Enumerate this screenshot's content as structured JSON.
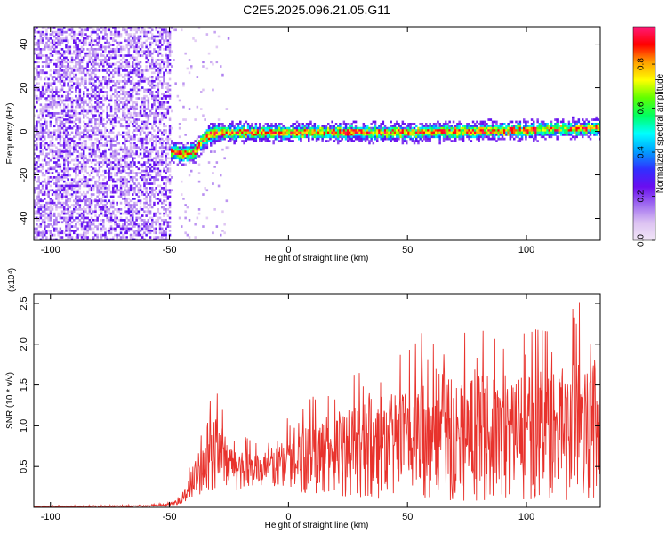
{
  "title": "C2E5.2025.096.21.05.G11",
  "chart_data": [
    {
      "type": "heatmap",
      "xlabel": "Height of straight line (km)",
      "ylabel": "Frequency (Hz)",
      "xlim": [
        -107,
        131
      ],
      "ylim": [
        -50,
        48
      ],
      "xticks": [
        -100,
        -50,
        0,
        50,
        100
      ],
      "yticks": [
        -40,
        -20,
        0,
        20,
        40
      ],
      "colorbar": {
        "label": "Normalized spectral amplitude",
        "range": [
          0,
          0.97
        ],
        "ticks": [
          "0.0",
          "0.2",
          "0.4",
          "0.6",
          "0.8"
        ],
        "tick_values": [
          0,
          0.2,
          0.4,
          0.6,
          0.8
        ],
        "colormap": [
          "#f2e6f7",
          "#dcc2f2",
          "#a06cf0",
          "#6a0df0",
          "#3030ff",
          "#00a0ff",
          "#00ffff",
          "#00ff60",
          "#60ff00",
          "#ffff00",
          "#ffa000",
          "#ff0000",
          "#ff1a7a"
        ]
      },
      "ridge": {
        "description_points_x": [
          -107,
          -57,
          -52,
          -45,
          -40,
          -35,
          -30,
          0,
          50,
          100,
          131
        ],
        "description_points_y": [
          -5,
          -6,
          -8,
          -10,
          -9,
          -2,
          0,
          0,
          0,
          1,
          2
        ],
        "noise_region_x": [
          -107,
          -52
        ]
      }
    },
    {
      "type": "line",
      "xlabel": "Height of straight line (km)",
      "ylabel": "SNR (10 * v/v)",
      "y_multiplier": "(x10⁴)",
      "xlim": [
        -107,
        131
      ],
      "ylim": [
        0,
        2.62
      ],
      "xticks": [
        -100,
        -50,
        0,
        50,
        100
      ],
      "yticks": [
        0.5,
        1.0,
        1.5,
        2.0,
        2.5
      ],
      "ytick_labels": [
        "0.5",
        "1.0",
        "1.5",
        "2.0",
        "2.5"
      ],
      "series": [
        {
          "color": "#e8322c",
          "envelope_x": [
            -107,
            -60,
            -50,
            -45,
            -42,
            -38,
            -33,
            -30,
            -25,
            -20,
            -15,
            -10,
            -5,
            0,
            10,
            20,
            30,
            40,
            50,
            60,
            70,
            80,
            90,
            100,
            110,
            120,
            125,
            131
          ],
          "envelope_max": [
            0.02,
            0.03,
            0.06,
            0.15,
            0.45,
            0.85,
            1.3,
            1.4,
            0.95,
            0.9,
            0.8,
            0.75,
            1.0,
            1.1,
            1.35,
            1.55,
            1.65,
            1.8,
            1.9,
            2.3,
            2.1,
            2.2,
            2.0,
            2.2,
            2.15,
            2.45,
            2.6,
            2.3
          ],
          "envelope_min": [
            0.0,
            0.005,
            0.02,
            0.04,
            0.1,
            0.15,
            0.2,
            0.2,
            0.2,
            0.2,
            0.25,
            0.25,
            0.25,
            0.2,
            0.15,
            0.1,
            0.1,
            0.1,
            0.1,
            0.1,
            0.08,
            0.08,
            0.08,
            0.08,
            0.08,
            0.08,
            0.06,
            0.06
          ]
        }
      ]
    }
  ]
}
